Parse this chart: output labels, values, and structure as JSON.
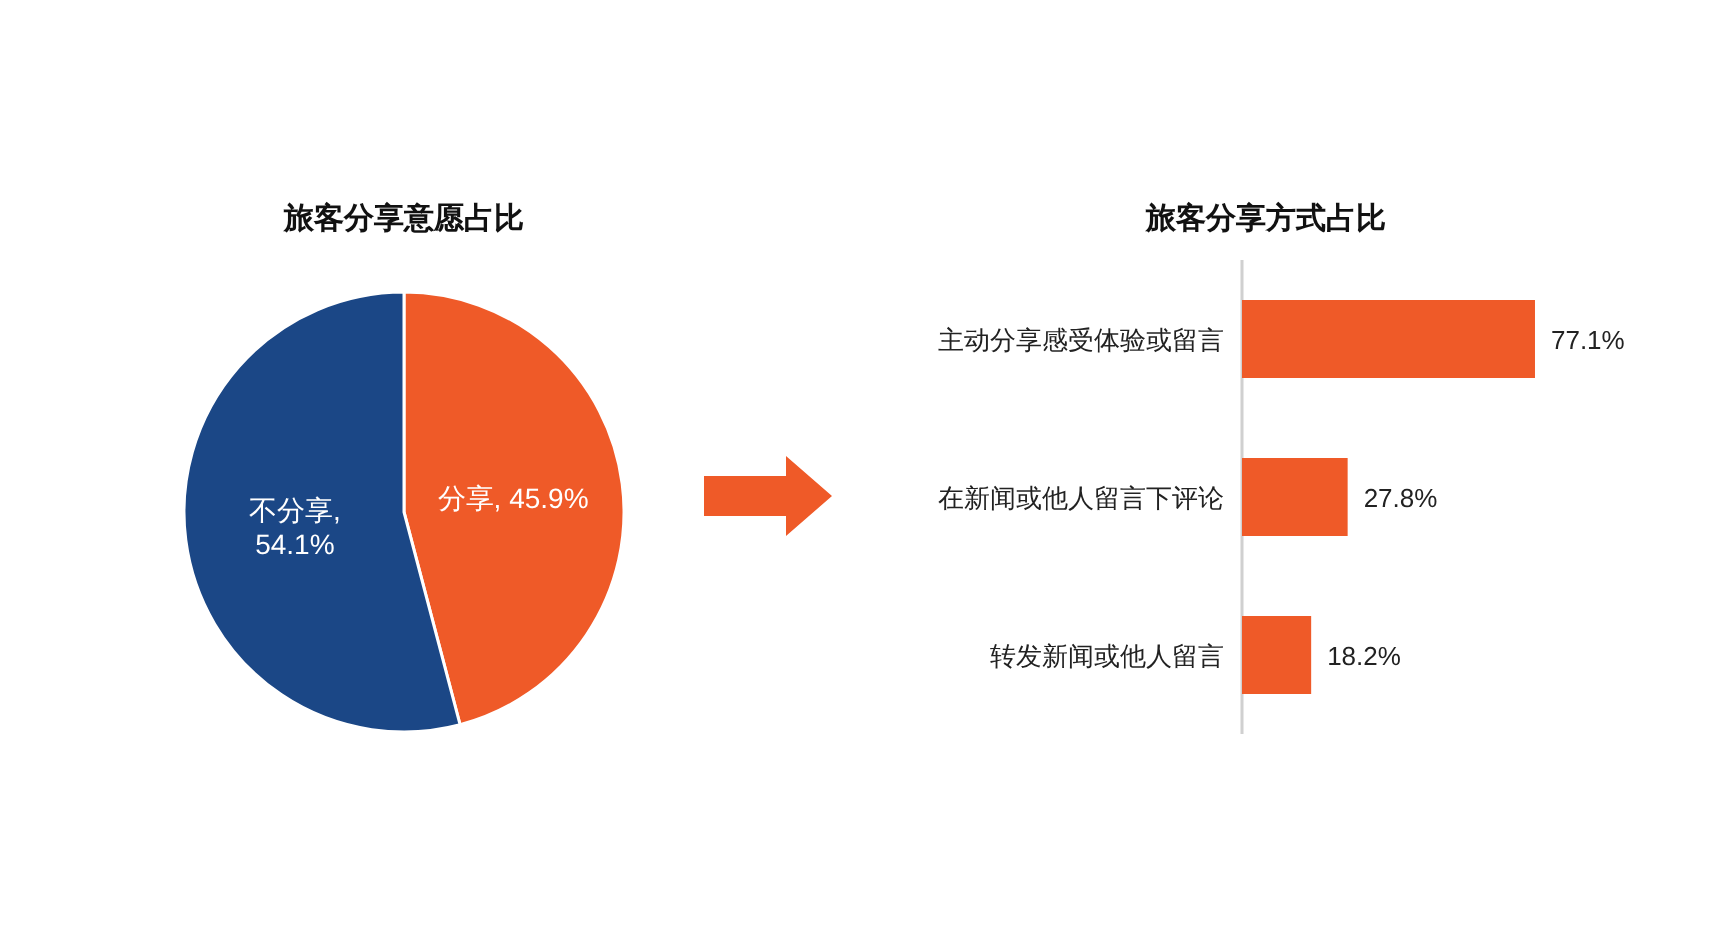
{
  "chart_data": [
    {
      "type": "pie",
      "title": "旅客分享意愿占比",
      "categories": [
        "分享",
        "不分享"
      ],
      "values": [
        45.9,
        54.1
      ],
      "colors": [
        "#ef5a28",
        "#1b4786"
      ],
      "value_labels": [
        ", 45.9%",
        ", 54.1%"
      ]
    },
    {
      "type": "bar",
      "title": "旅客分享方式占比",
      "orientation": "horizontal",
      "categories": [
        "主动分享感受体验或留言",
        "在新闻或他人留言下评论",
        "转发新闻或他人留言"
      ],
      "values": [
        77.1,
        27.8,
        18.2
      ],
      "color": "#ef5a28",
      "value_labels": [
        "77.1%",
        "27.8%",
        "18.2%"
      ]
    }
  ]
}
